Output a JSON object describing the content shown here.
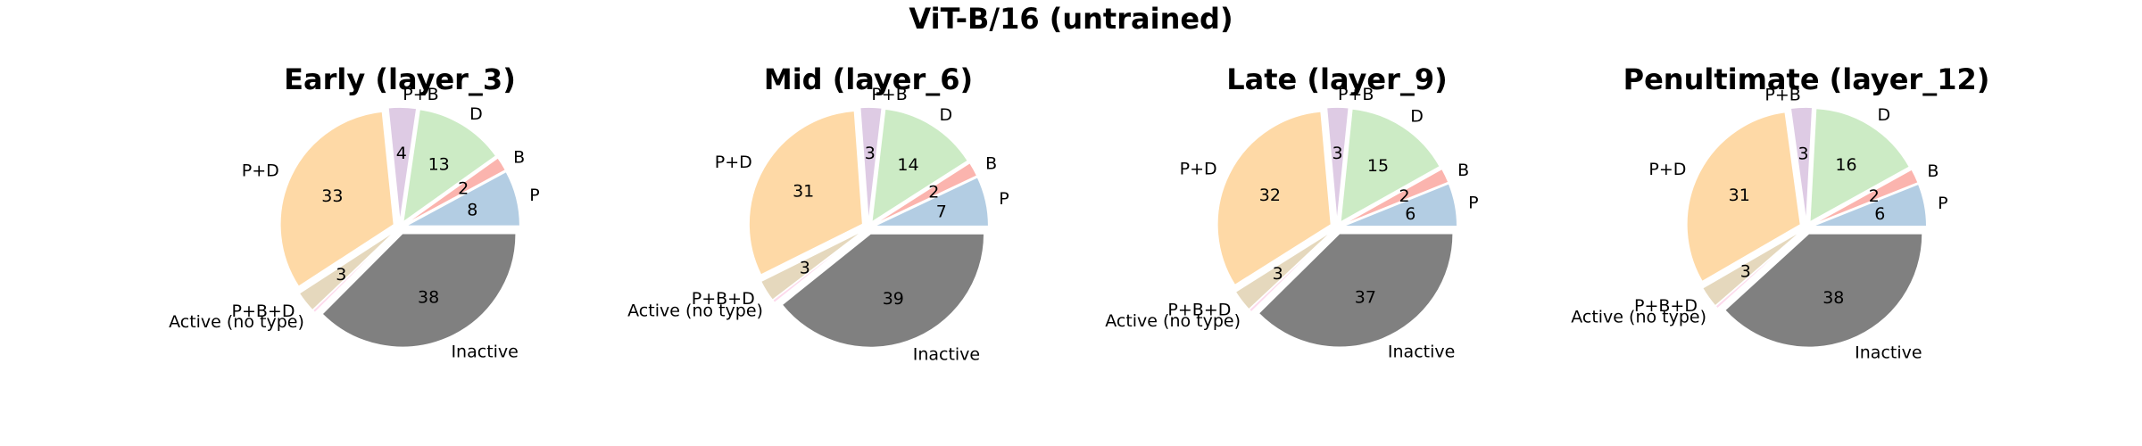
{
  "suptitle": "ViT-B/16 (untrained)",
  "chart_data": [
    {
      "type": "pie",
      "title": "Early (layer_3)",
      "categories": [
        "P",
        "B",
        "D",
        "P+B",
        "P+D",
        "P+B+D",
        "Active (no type)",
        "Inactive"
      ],
      "values": [
        8,
        2,
        13,
        4,
        33,
        3,
        0.4,
        38
      ],
      "value_labels": [
        "8",
        "2",
        "13",
        "4",
        "33",
        "3",
        "",
        "38"
      ]
    },
    {
      "type": "pie",
      "title": "Mid (layer_6)",
      "categories": [
        "P",
        "B",
        "D",
        "P+B",
        "P+D",
        "P+B+D",
        "Active (no type)",
        "Inactive"
      ],
      "values": [
        7,
        2,
        14,
        3,
        31,
        3,
        0.4,
        39
      ],
      "value_labels": [
        "7",
        "2",
        "14",
        "3",
        "31",
        "3",
        "",
        "39"
      ]
    },
    {
      "type": "pie",
      "title": "Late (layer_9)",
      "categories": [
        "P",
        "B",
        "D",
        "P+B",
        "P+D",
        "P+B+D",
        "Active (no type)",
        "Inactive"
      ],
      "values": [
        6,
        2,
        15,
        3,
        32,
        3,
        0.4,
        37
      ],
      "value_labels": [
        "6",
        "2",
        "15",
        "3",
        "32",
        "3",
        "",
        "37"
      ]
    },
    {
      "type": "pie",
      "title": "Penultimate (layer_12)",
      "categories": [
        "P",
        "B",
        "D",
        "P+B",
        "P+D",
        "P+B+D",
        "Active (no type)",
        "Inactive"
      ],
      "values": [
        6,
        2,
        16,
        3,
        31,
        3,
        0.4,
        38
      ],
      "value_labels": [
        "6",
        "2",
        "16",
        "3",
        "31",
        "3",
        "",
        "38"
      ]
    }
  ],
  "colors": [
    "#b3cde3",
    "#fbb4ae",
    "#ccebc5",
    "#decbe4",
    "#fed9a6",
    "#e5d8bd",
    "#fddaec",
    "#808080"
  ]
}
